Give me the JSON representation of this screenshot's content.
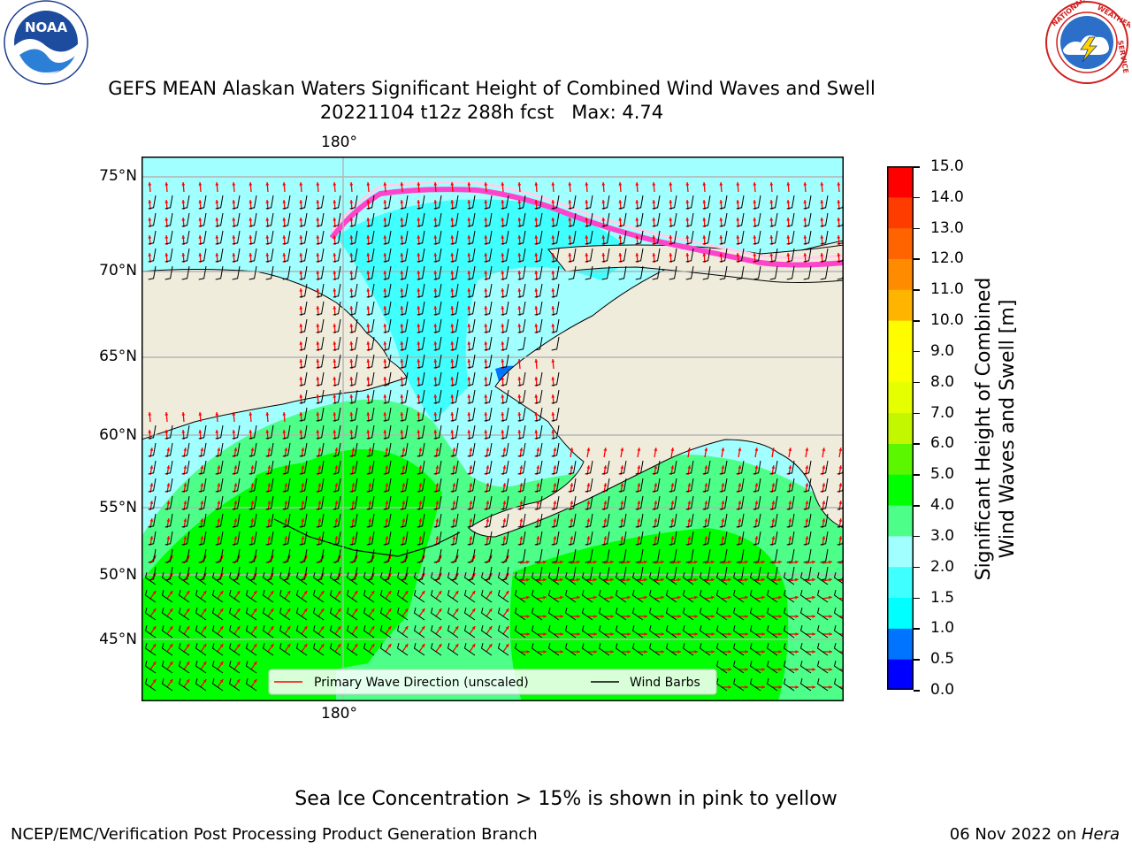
{
  "header": {
    "title_line1": "GEFS MEAN Alaskan Waters Significant Height of Combined Wind Waves and Swell",
    "title_line2": "20221104 t12z 288h fcst   Max: 4.74",
    "left_logo": {
      "icon": "noaa-logo",
      "text": "NOAA",
      "ring_text": "NATIONAL OCEANIC AND ATMOSPHERIC ADMINISTRATION · U.S. DEPARTMENT OF COMMERCE"
    },
    "right_logo": {
      "icon": "national-weather-service-logo",
      "ring_text": "NATIONAL WEATHER SERVICE"
    }
  },
  "map": {
    "region": "Alaskan Waters (Bering Sea, Chukchi Sea, Gulf of Alaska, North Pacific)",
    "lon_label_top": "180°",
    "lon_label_bottom": "180°",
    "lat_labels": [
      "75°N",
      "70°N",
      "65°N",
      "60°N",
      "55°N",
      "50°N",
      "45°N"
    ],
    "gridlines": true,
    "land_color": "#efecdc",
    "coastline_color": "#000000",
    "vector_color": "#ff0000",
    "barb_color": "#000000",
    "legend": {
      "placement": "lower-center",
      "entries": [
        {
          "label": "Primary Wave Direction (unscaled)",
          "color": "#ff0000"
        },
        {
          "label": "Wind Barbs",
          "color": "#000000"
        }
      ]
    }
  },
  "colorbar": {
    "title_line1": "Significant Height of Combined",
    "title_line2": "Wind Waves and Swell [m]",
    "min": 0.0,
    "max": 15.0,
    "ticks": [
      "15.0",
      "14.0",
      "13.0",
      "12.0",
      "11.0",
      "10.0",
      "9.0",
      "8.0",
      "7.0",
      "6.0",
      "5.0",
      "4.0",
      "3.0",
      "2.0",
      "1.5",
      "1.0",
      "0.5",
      "0.0"
    ],
    "colors_bottom_to_top": [
      "#0000ff",
      "#0074ff",
      "#00ffff",
      "#40ffff",
      "#a2ffff",
      "#4dff88",
      "#00ff00",
      "#5af700",
      "#c3f700",
      "#e6ff00",
      "#fbff00",
      "#fffc00",
      "#ffb400",
      "#ff8c00",
      "#ff6400",
      "#ff3c00",
      "#ff0000"
    ]
  },
  "footer": {
    "sea_ice_note": "Sea Ice Concentration > 15% is shown in pink to yellow",
    "credit": "NCEP/EMC/Verification Post Processing Product Generation Branch",
    "date_prefix": "06 Nov 2022 on ",
    "host": "Hera"
  }
}
